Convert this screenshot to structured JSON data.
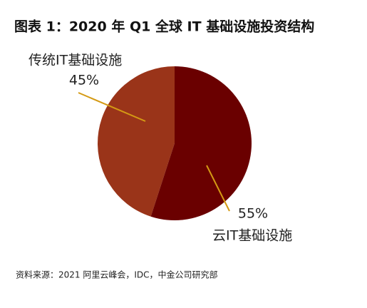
{
  "chart_data": {
    "type": "pie",
    "title": "图表 1：2020 年 Q1 全球 IT 基础设施投资结构",
    "categories": [
      "传统IT基础设施",
      "云IT基础设施"
    ],
    "values": [
      45,
      55
    ],
    "value_labels": [
      "45%",
      "55%"
    ],
    "colors": [
      "#9a3419",
      "#6a0000"
    ],
    "leader_color": "#d49a14",
    "source": "资料来源：2021 阿里云峰会，IDC，中金公司研究部"
  }
}
